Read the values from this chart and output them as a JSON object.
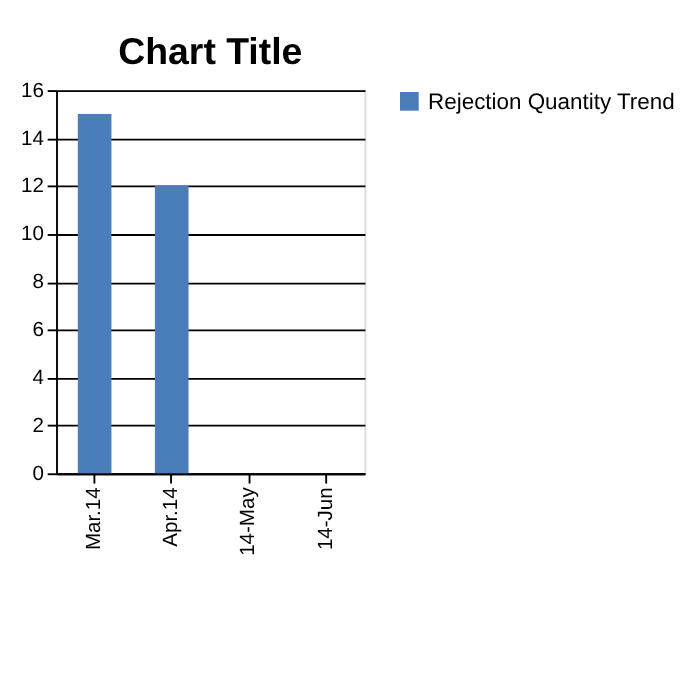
{
  "chart_data": {
    "type": "bar",
    "title": "Chart Title",
    "categories": [
      "Mar.14",
      "Apr.14",
      "14-May",
      "14-Jun"
    ],
    "series": [
      {
        "name": "Rejection Quantity Trend",
        "color": "#4a7ebb",
        "values": [
          15,
          12,
          null,
          null
        ]
      }
    ],
    "ylim": [
      0,
      16
    ],
    "yticks": [
      0,
      2,
      4,
      6,
      8,
      10,
      12,
      14,
      16
    ],
    "grid": "y",
    "legend": "right"
  }
}
